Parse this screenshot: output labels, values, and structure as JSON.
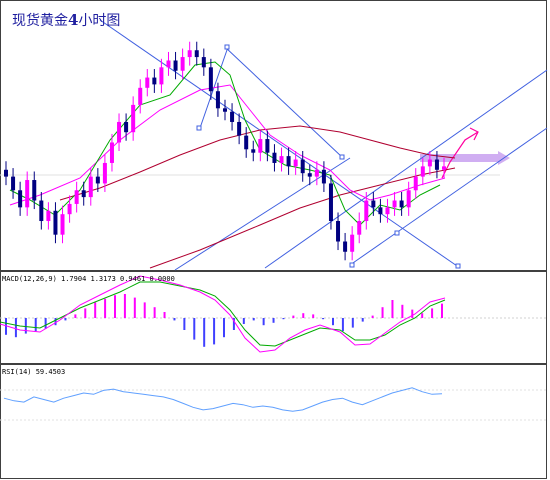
{
  "header": {
    "title_prefix": "现货黄金",
    "title_number": "4",
    "title_suffix": "小时图"
  },
  "indicators": {
    "macd_label": "MACD(12,26,9) 1.7904 1.3173 0.9461 0.0000",
    "rsi_label": "RSI(14) 59.4503"
  },
  "colors": {
    "bull_candle": "#ff00ff",
    "bear_candle": "#000080",
    "ma_fast": "#00aa00",
    "ma_mid": "#ff00ff",
    "ma_slow": "#b00030",
    "channel": "#4060e0",
    "arrow": "#ff00a0",
    "resistance_band": "#c8a0f0",
    "macd_hist_up": "#ff00ff",
    "macd_hist_down": "#4040ff",
    "rsi_line": "#60a0ff",
    "panel_border": "#404040"
  },
  "chart_data": [
    {
      "type": "candlestick",
      "title": "现货黄金4小时图",
      "series": [
        {
          "name": "",
          "values": [
            1285,
            1281,
            1276,
            1284,
            1278,
            1272,
            1275,
            1268,
            1274,
            1277,
            1281,
            1279,
            1285,
            1283,
            1289,
            1295,
            1301,
            1298,
            1306,
            1311,
            1314,
            1312,
            1317,
            1319,
            1316,
            1320,
            1322,
            1320,
            1317,
            1310,
            1305,
            1304,
            1301,
            1297,
            1293,
            1292,
            1296,
            1292,
            1289,
            1291,
            1288,
            1290,
            1286,
            1285,
            1287,
            1283,
            1272,
            1266,
            1263,
            1268,
            1272,
            1278,
            1276,
            1274,
            1276,
            1278,
            1276,
            1281,
            1285,
            1288,
            1290,
            1287,
            1288
          ]
        }
      ]
    },
    {
      "type": "bar",
      "title": "MACD(12,26,9)",
      "values": [
        -1.4,
        -1.6,
        -1.3,
        -1.1,
        -0.9,
        -0.6,
        -0.2,
        0.3,
        0.8,
        1.3,
        1.6,
        1.9,
        2.0,
        1.7,
        1.3,
        0.9,
        0.5,
        -0.2,
        -1.0,
        -1.8,
        -2.4,
        -2.2,
        -1.6,
        -1.0,
        -0.5,
        -0.2,
        -0.6,
        -0.4,
        -0.1,
        0.2,
        0.4,
        0.3,
        -0.1,
        -0.6,
        -1.1,
        -0.8,
        -0.3,
        0.2,
        0.9,
        1.5,
        1.1,
        0.7,
        0.4,
        0.8,
        1.2
      ]
    },
    {
      "type": "line",
      "title": "RSI(14)",
      "values": [
        56,
        54,
        53,
        57,
        55,
        53,
        56,
        58,
        60,
        59,
        62,
        63,
        61,
        60,
        59,
        58,
        57,
        55,
        52,
        49,
        47,
        48,
        50,
        52,
        51,
        49,
        50,
        49,
        47,
        46,
        47,
        50,
        53,
        55,
        56,
        53,
        51,
        54,
        57,
        60,
        62,
        64,
        61,
        59,
        59.45
      ]
    }
  ]
}
